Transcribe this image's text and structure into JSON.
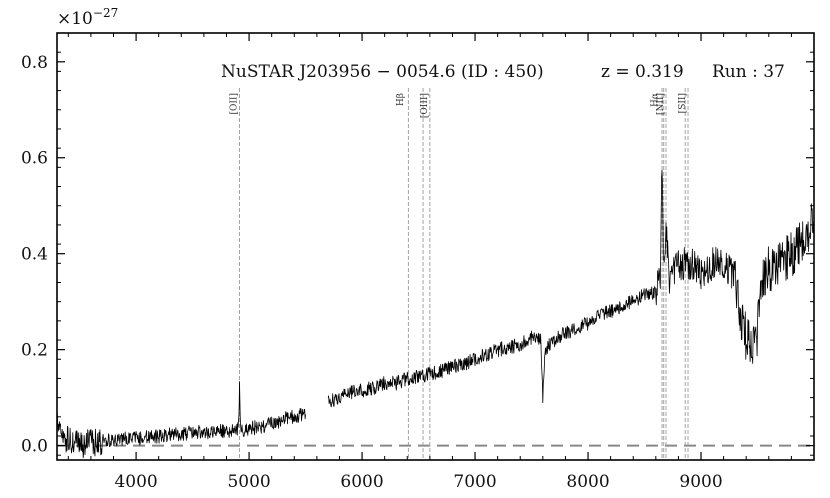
{
  "chart_data": {
    "type": "line",
    "title": "NuSTAR J203956 − 0054.6 (ID : 450)",
    "redshift_label": "z = 0.319",
    "run_label": "Run : 37",
    "y_multiplier": {
      "base": "×10",
      "exponent": "−27"
    },
    "xlim": [
      3300,
      10000
    ],
    "ylim": [
      -0.03,
      0.86
    ],
    "x_ticks": [
      4000,
      5000,
      6000,
      7000,
      8000,
      9000
    ],
    "x_tick_labels": [
      "4000",
      "5000",
      "6000",
      "7000",
      "8000",
      "9000"
    ],
    "y_ticks": [
      0.0,
      0.2,
      0.4,
      0.6,
      0.8
    ],
    "y_tick_labels": [
      "0.0",
      "0.2",
      "0.4",
      "0.6",
      "0.8"
    ],
    "zero_line": {
      "y": 0.0,
      "style": "dashed",
      "color": "#888888"
    },
    "emission_lines": [
      {
        "name": "[OII]",
        "x": [
          4915
        ],
        "label_x": 4915
      },
      {
        "name": "Hβ",
        "x": [
          6410
        ],
        "label_x": 6390
      },
      {
        "name": "[OIII]",
        "x": [
          6540,
          6600
        ],
        "label_x": 6600
      },
      {
        "name": "Hα",
        "x": [
          8655
        ],
        "label_x": 8640
      },
      {
        "name": "[NII]",
        "x": [
          8670,
          8690
        ],
        "label_x": 8690
      },
      {
        "name": "[SII]",
        "x": [
          8860,
          8885
        ],
        "label_x": 8885
      }
    ],
    "series": [
      {
        "color": "#000000",
        "segments": [
          {
            "x": [
              3300,
              3350,
              3400,
              3500,
              3600,
              3700,
              3800,
              3900,
              4000,
              4200,
              4400,
              4600,
              4800,
              4900,
              4910,
              4915,
              4925,
              4950,
              5000,
              5100,
              5200,
              5300,
              5400,
              5500
            ],
            "y": [
              0.06,
              0.02,
              0.01,
              0.0,
              0.005,
              0.01,
              0.01,
              0.015,
              0.015,
              0.02,
              0.025,
              0.028,
              0.03,
              0.035,
              0.06,
              0.125,
              0.04,
              0.03,
              0.035,
              0.04,
              0.045,
              0.055,
              0.06,
              0.065
            ]
          },
          {
            "x": [
              5700,
              5800,
              5900,
              6000,
              6100,
              6200,
              6300,
              6400,
              6500,
              6600,
              6700,
              6800,
              6900,
              7000,
              7100,
              7200,
              7300,
              7400,
              7500,
              7580,
              7600,
              7620,
              7700,
              7800,
              7900,
              8000,
              8100,
              8200,
              8300,
              8400,
              8500,
              8600,
              8640,
              8655,
              8670,
              8690,
              8720,
              8800,
              8900,
              9000,
              9100,
              9200,
              9300,
              9350,
              9400,
              9450,
              9500,
              9550,
              9600,
              9700,
              9800,
              9900,
              10000
            ],
            "y": [
              0.09,
              0.1,
              0.11,
              0.115,
              0.12,
              0.13,
              0.13,
              0.14,
              0.145,
              0.15,
              0.155,
              0.165,
              0.17,
              0.18,
              0.19,
              0.2,
              0.205,
              0.21,
              0.225,
              0.22,
              0.1,
              0.2,
              0.22,
              0.235,
              0.245,
              0.255,
              0.27,
              0.28,
              0.29,
              0.3,
              0.315,
              0.32,
              0.35,
              0.6,
              0.36,
              0.45,
              0.35,
              0.38,
              0.38,
              0.36,
              0.38,
              0.38,
              0.35,
              0.28,
              0.22,
              0.2,
              0.24,
              0.34,
              0.37,
              0.38,
              0.4,
              0.42,
              0.47
            ]
          }
        ]
      }
    ]
  }
}
